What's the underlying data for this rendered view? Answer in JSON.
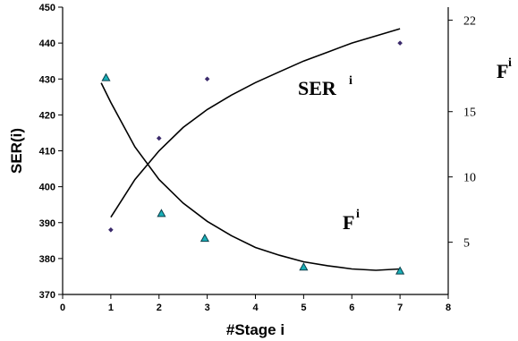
{
  "chart_data": {
    "type": "scatter",
    "xlabel": "#Stage i",
    "ylabel": "SER(i)",
    "xlim": [
      0,
      8
    ],
    "ylim": [
      370,
      450
    ],
    "y2lim": [
      1,
      23
    ],
    "x_ticks": [
      0,
      1,
      2,
      3,
      4,
      5,
      6,
      7,
      8
    ],
    "y_ticks": [
      370,
      380,
      390,
      400,
      410,
      420,
      430,
      440,
      450
    ],
    "y2_ticks": [
      5,
      10,
      15,
      22
    ],
    "y2_label_base": "F",
    "y2_label_sup": "i",
    "series": [
      {
        "name_base": "SER",
        "name_sup": "i",
        "axis": "left",
        "marker": "diamond",
        "color": "#3b2a6b",
        "points": [
          [
            1,
            388
          ],
          [
            2,
            413.5
          ],
          [
            3,
            430
          ],
          [
            7,
            440
          ]
        ],
        "fit_curve": [
          [
            1,
            391.5
          ],
          [
            1.5,
            402
          ],
          [
            2,
            410
          ],
          [
            2.5,
            416.5
          ],
          [
            3,
            421.5
          ],
          [
            3.5,
            425.5
          ],
          [
            4,
            429
          ],
          [
            4.5,
            432
          ],
          [
            5,
            435
          ],
          [
            5.5,
            437.5
          ],
          [
            6,
            440
          ],
          [
            6.5,
            442
          ],
          [
            7,
            444
          ]
        ]
      },
      {
        "name_base": "F",
        "name_sup": "i",
        "axis": "right",
        "marker": "triangle",
        "color": "#1ab0b8",
        "points": [
          [
            0.9,
            17.6
          ],
          [
            2.05,
            7.2
          ],
          [
            2.95,
            5.3
          ],
          [
            5,
            3.1
          ],
          [
            7,
            2.8
          ]
        ],
        "fit_curve": [
          [
            0.8,
            17.2
          ],
          [
            1,
            15.7
          ],
          [
            1.5,
            12.3
          ],
          [
            2,
            9.8
          ],
          [
            2.5,
            8.0
          ],
          [
            3,
            6.6
          ],
          [
            3.5,
            5.5
          ],
          [
            4,
            4.6
          ],
          [
            4.5,
            4.0
          ],
          [
            5,
            3.5
          ],
          [
            5.5,
            3.2
          ],
          [
            6,
            2.95
          ],
          [
            6.5,
            2.85
          ],
          [
            7,
            2.95
          ]
        ]
      }
    ]
  }
}
